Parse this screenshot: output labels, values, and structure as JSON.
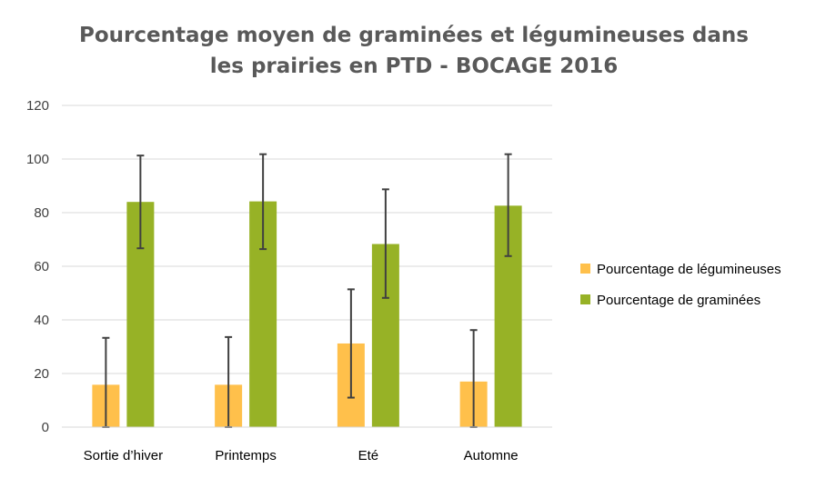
{
  "chart_data": {
    "type": "bar",
    "title_lines": [
      "Pourcentage moyen de graminées et légumineuses dans",
      "les prairies en PTD - BOCAGE 2016"
    ],
    "categories": [
      "Sortie d’hiver",
      "Printemps",
      "Eté",
      "Automne"
    ],
    "series": [
      {
        "name": "Pourcentage de légumineuses",
        "color": "#FFC04B",
        "values": [
          15.8,
          15.8,
          31.2,
          17.0
        ],
        "error_low": [
          0,
          0,
          11,
          0
        ],
        "error_high": [
          33.3,
          33.6,
          51.4,
          36.2
        ]
      },
      {
        "name": "Pourcentage de graminées",
        "color": "#97B226",
        "values": [
          84.0,
          84.2,
          68.3,
          82.6
        ],
        "error_low": [
          66.7,
          66.4,
          48.2,
          63.8
        ],
        "error_high": [
          101.3,
          101.8,
          88.7,
          101.8
        ]
      }
    ],
    "ylim": [
      0,
      120
    ],
    "yticks": [
      "0",
      "20",
      "40",
      "60",
      "80",
      "100",
      "120"
    ],
    "grid": true,
    "legend_position": "right",
    "error_bar_color": "#404040"
  }
}
